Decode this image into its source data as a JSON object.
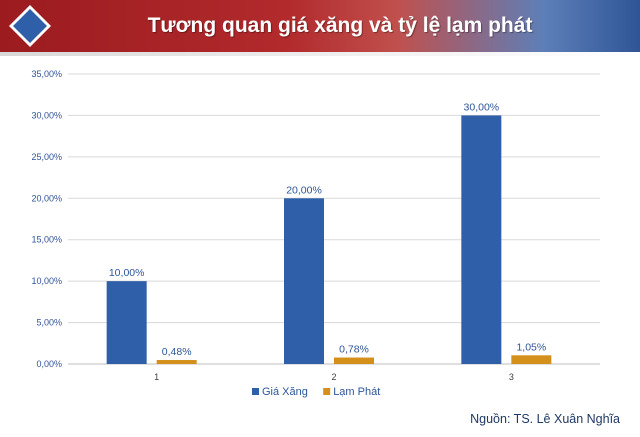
{
  "banner": {
    "title": "Tương quan giá xăng và tỷ lệ lạm phát",
    "colors": {
      "red": "#9b1b1f",
      "blue": "#2f5597",
      "diamond": "#2e5fa8"
    }
  },
  "chart_data": {
    "type": "bar",
    "categories": [
      "1",
      "2",
      "3"
    ],
    "series": [
      {
        "name": "Giá Xăng",
        "values": [
          10.0,
          20.0,
          30.0
        ],
        "labels": [
          "10,00%",
          "20,00%",
          "30,00%"
        ],
        "color": "#2e5fa8"
      },
      {
        "name": "Lạm Phát",
        "values": [
          0.48,
          0.78,
          1.05
        ],
        "labels": [
          "0,48%",
          "0,78%",
          "1,05%"
        ],
        "color": "#d4901a"
      }
    ],
    "yticks": [
      {
        "value": 0,
        "label": "0,00%"
      },
      {
        "value": 5,
        "label": "5,00%"
      },
      {
        "value": 10,
        "label": "10,00%"
      },
      {
        "value": 15,
        "label": "15,00%"
      },
      {
        "value": 20,
        "label": "20,00%"
      },
      {
        "value": 25,
        "label": "25,00%"
      },
      {
        "value": 30,
        "label": "30,00%"
      },
      {
        "value": 35,
        "label": "35,00%"
      }
    ],
    "ylim": [
      0,
      35
    ],
    "grid": true,
    "legend_position": "bottom",
    "title": "",
    "xlabel": "",
    "ylabel": ""
  },
  "source": "Nguồn: TS. Lê Xuân Nghĩa"
}
